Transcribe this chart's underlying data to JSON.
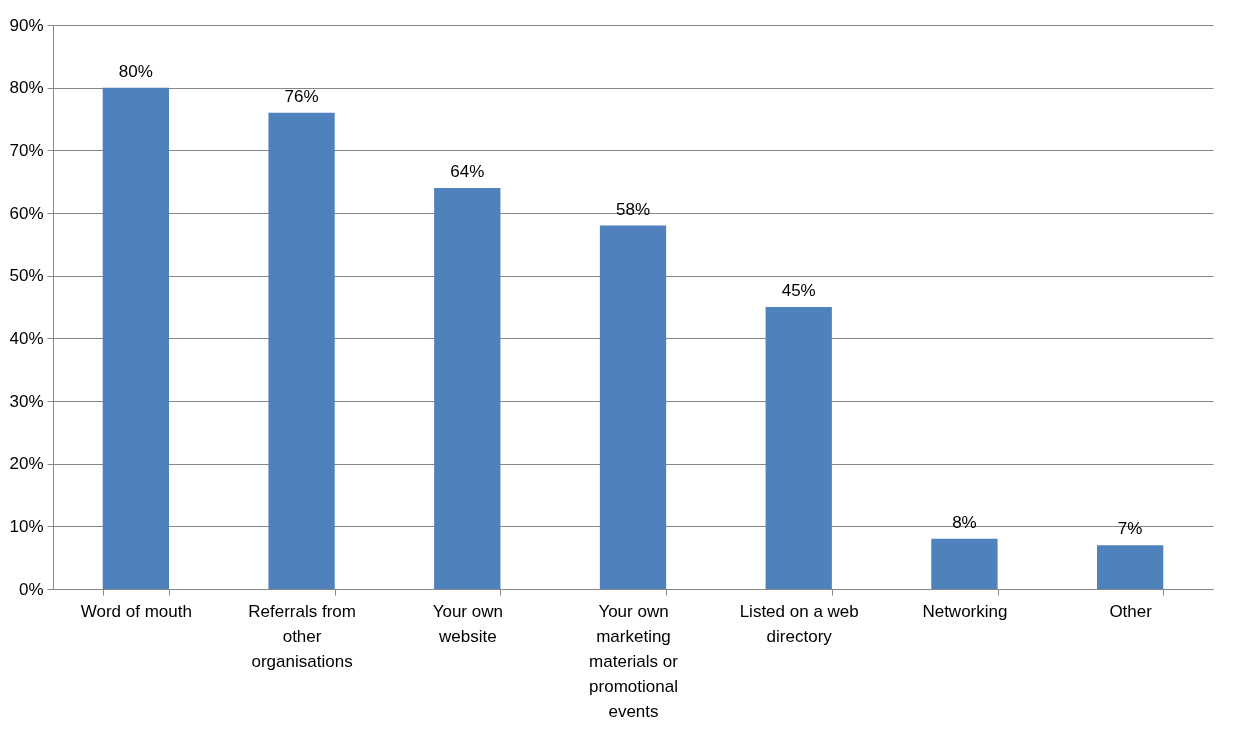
{
  "chart_data": {
    "type": "bar",
    "categories": [
      "Word of mouth",
      "Referrals from other organisations",
      "Your own website",
      "Your own marketing materials or promotional events",
      "Listed on a web directory",
      "Networking",
      "Other"
    ],
    "values": [
      80,
      76,
      64,
      58,
      45,
      8,
      7
    ],
    "value_labels": [
      "80%",
      "76%",
      "64%",
      "58%",
      "45%",
      "8%",
      "7%"
    ],
    "color": "#4f81bd",
    "ylim": [
      0,
      90
    ],
    "yticks": [
      {
        "value": 0,
        "label": "0%"
      },
      {
        "value": 10,
        "label": "10%"
      },
      {
        "value": 20,
        "label": "20%"
      },
      {
        "value": 30,
        "label": "30%"
      },
      {
        "value": 40,
        "label": "40%"
      },
      {
        "value": 50,
        "label": "50%"
      },
      {
        "value": 60,
        "label": "60%"
      },
      {
        "value": 70,
        "label": "70%"
      },
      {
        "value": 80,
        "label": "80%"
      },
      {
        "value": 90,
        "label": "90%"
      }
    ],
    "grid": "y"
  }
}
